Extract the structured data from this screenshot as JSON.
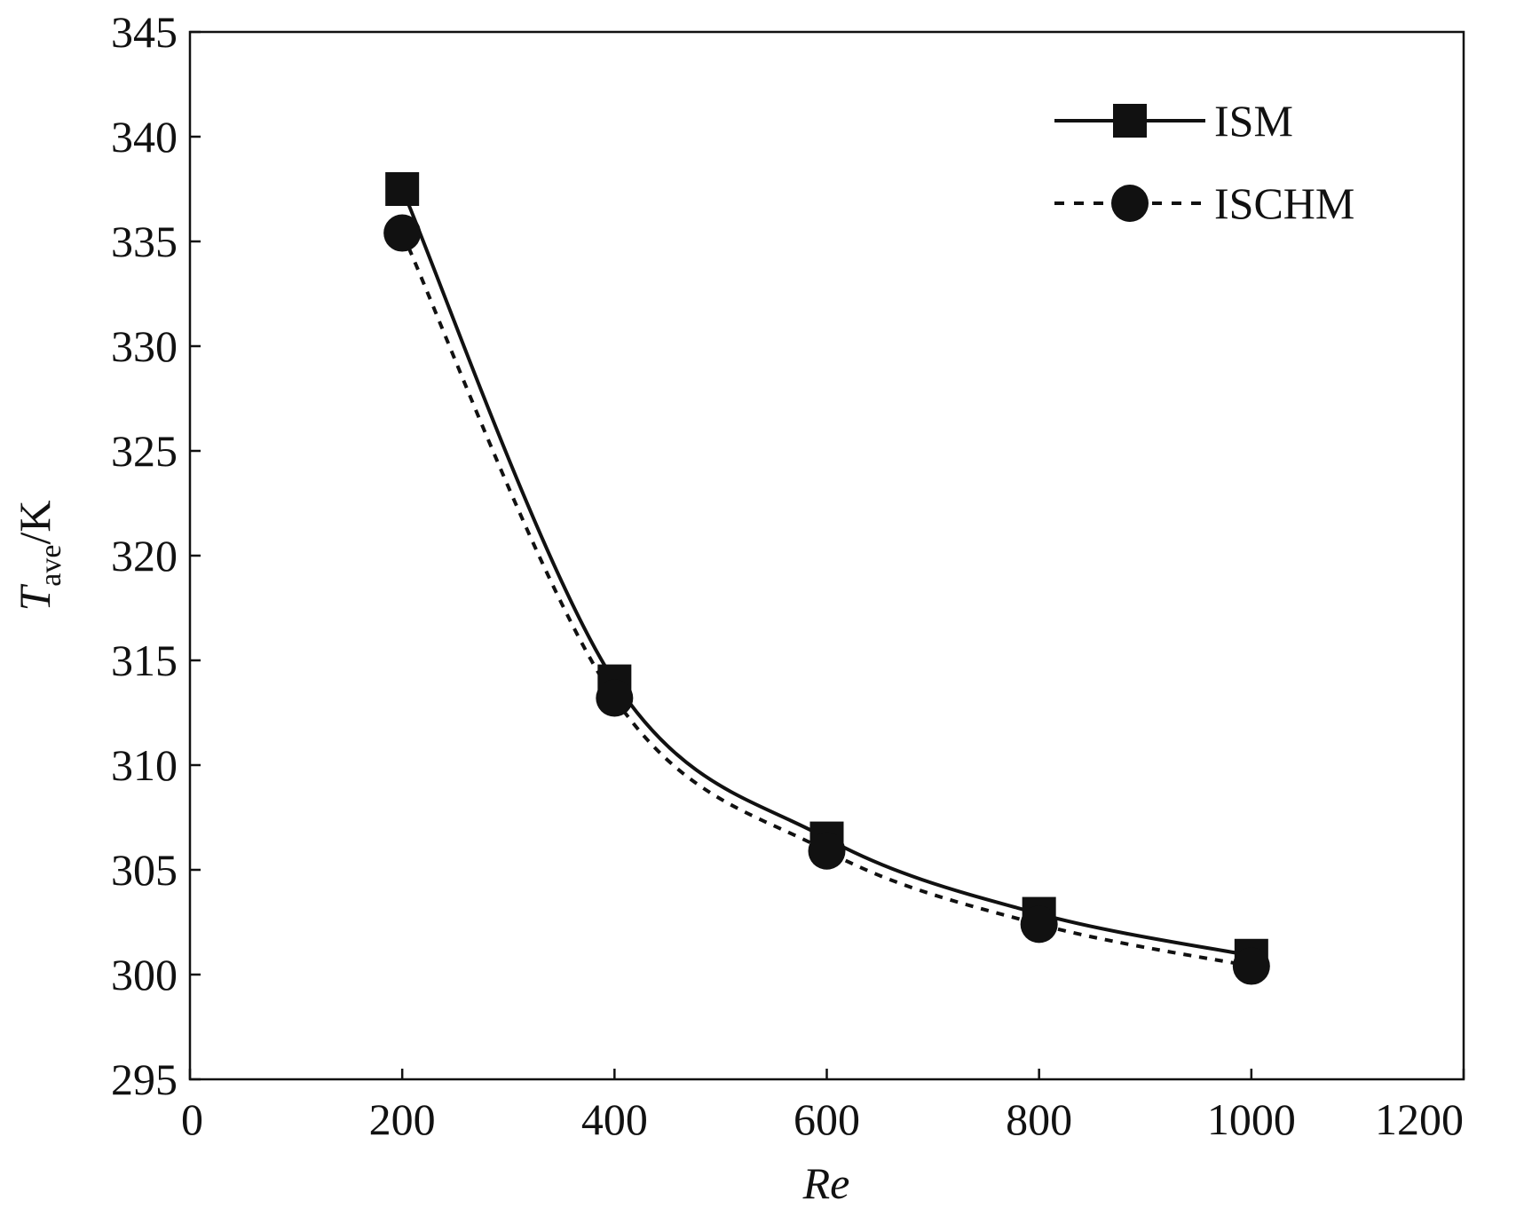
{
  "chart_data": {
    "type": "line",
    "xlabel": "Re",
    "ylabel": {
      "main": "T",
      "sub": "ave",
      "suffix": "/K"
    },
    "xlim": [
      0,
      1200
    ],
    "ylim": [
      295,
      345
    ],
    "xticks": [
      "0",
      "200",
      "400",
      "600",
      "800",
      "1000",
      "1200"
    ],
    "yticks": [
      "295",
      "300",
      "305",
      "310",
      "315",
      "320",
      "325",
      "330",
      "335",
      "340",
      "345"
    ],
    "grid": false,
    "legend_position": "top-right",
    "series": [
      {
        "name": "ISM",
        "marker": "square",
        "line_style": "solid",
        "color": "#111111",
        "x": [
          200,
          400,
          600,
          800,
          1000
        ],
        "y": [
          337.5,
          314.0,
          306.5,
          302.9,
          300.9
        ]
      },
      {
        "name": "ISCHM",
        "marker": "circle",
        "line_style": "dotted",
        "color": "#111111",
        "x": [
          200,
          400,
          600,
          800,
          1000
        ],
        "y": [
          335.4,
          313.2,
          305.9,
          302.4,
          300.4
        ]
      }
    ]
  }
}
